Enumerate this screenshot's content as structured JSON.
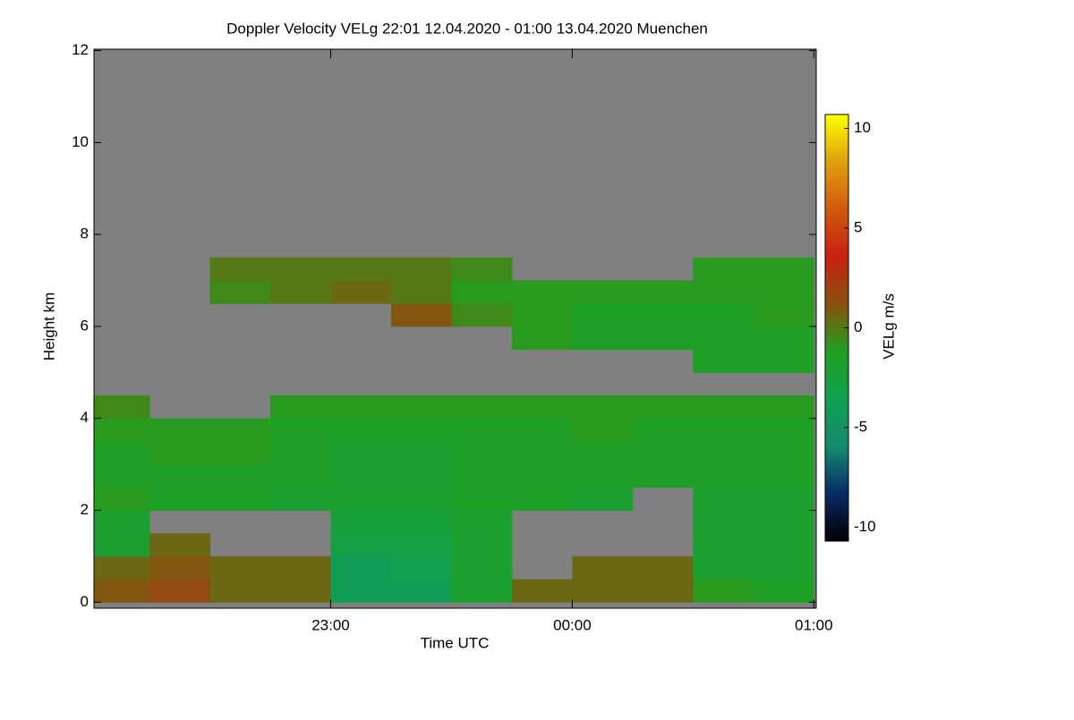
{
  "chart_data": {
    "type": "heatmap",
    "title": "Doppler Velocity VELg   22:01 12.04.2020 - 01:00 13.04.2020 Muenchen",
    "x_label": "Time UTC",
    "y_label": "Height km",
    "colorbar_label": "VELg m/s",
    "x": [
      22.125,
      22.375,
      22.625,
      22.875,
      23.125,
      23.375,
      23.625,
      23.875,
      24.125,
      24.375,
      24.625,
      24.875
    ],
    "y": [
      0.25,
      0.75,
      1.25,
      1.75,
      2.25,
      2.75,
      3.25,
      3.75,
      4.25,
      4.75,
      5.25,
      5.75,
      6.25,
      6.75,
      7.25
    ],
    "values": [
      [
        1,
        1.5,
        0.5,
        0.5,
        -4,
        -4,
        -2,
        0.5,
        0.5,
        0.5,
        -1,
        -1.5
      ],
      [
        0.5,
        1,
        0.5,
        0.5,
        -4,
        -3.5,
        -2,
        null,
        0.5,
        0.5,
        -2,
        -2
      ],
      [
        -2,
        0.5,
        null,
        null,
        -3,
        -3,
        -2,
        null,
        null,
        null,
        -2,
        -2
      ],
      [
        -2,
        null,
        null,
        null,
        -2.5,
        -2.5,
        -2,
        null,
        null,
        null,
        -2,
        -2
      ],
      [
        -1,
        -1.5,
        -1.5,
        -2,
        -2,
        -2,
        -1.5,
        -1.5,
        -2,
        null,
        -2,
        -2
      ],
      [
        -1.5,
        -1.5,
        -1.5,
        -1.5,
        -2,
        -2,
        -1.5,
        -1.5,
        -1.5,
        -1.5,
        -1.5,
        -1.5
      ],
      [
        -1.5,
        -1,
        -1,
        -1.5,
        -2,
        -2,
        -1.5,
        -1.5,
        -1.5,
        -1.5,
        -1.5,
        -1.5
      ],
      [
        -1,
        -1,
        -1,
        -1.5,
        -1.5,
        -1.5,
        -1.5,
        -1.5,
        -1,
        -1.5,
        -1.5,
        -1.5
      ],
      [
        -0.5,
        null,
        null,
        -1,
        -1,
        -1,
        -1,
        -1,
        -1,
        -1,
        -1,
        -1
      ],
      [
        null,
        null,
        null,
        null,
        null,
        null,
        null,
        null,
        null,
        null,
        null,
        null
      ],
      [
        null,
        null,
        null,
        null,
        null,
        null,
        null,
        null,
        null,
        null,
        -1.5,
        -1.5
      ],
      [
        null,
        null,
        null,
        null,
        null,
        null,
        null,
        -1,
        -1.5,
        -1.5,
        -1.5,
        -1.5
      ],
      [
        null,
        null,
        null,
        null,
        null,
        1,
        -0.5,
        -1,
        -1.5,
        -1.5,
        -1.5,
        -1
      ],
      [
        null,
        null,
        -0.5,
        0,
        0.5,
        0,
        -1,
        -1,
        -1,
        -1,
        -1,
        -1
      ],
      [
        null,
        null,
        0,
        0,
        0,
        0,
        -0.5,
        null,
        null,
        null,
        -1,
        -1
      ]
    ],
    "xlim": [
      22.02,
      25.01
    ],
    "xticks": [
      {
        "value": 23,
        "label": "23:00"
      },
      {
        "value": 24,
        "label": "00:00"
      },
      {
        "value": 25,
        "label": "01:00"
      }
    ],
    "ylim": [
      -0.13,
      12.03
    ],
    "yticks": [
      0,
      2,
      4,
      6,
      8,
      10,
      12
    ],
    "clim": [
      -10.7,
      10.7
    ],
    "cticks": [
      10,
      5,
      0,
      -5,
      -10
    ],
    "background": "#808080",
    "colormap": [
      "#000000",
      "#0a2a66",
      "#138a6e",
      "#10a050",
      "#20a020",
      "#8a5010",
      "#c82010",
      "#d05a10",
      "#e0a010",
      "#ffff00"
    ]
  }
}
